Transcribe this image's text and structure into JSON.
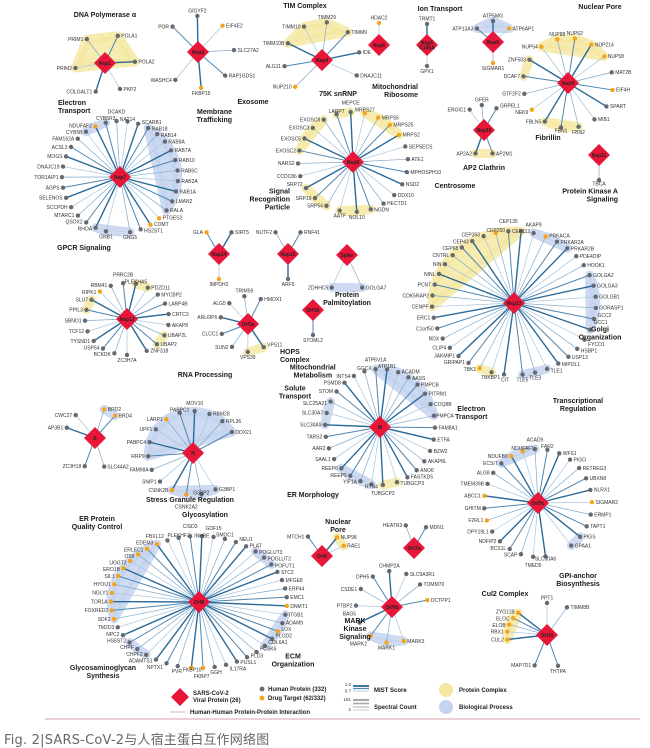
{
  "caption": "Fig. 2|SARS-CoV-2与人宿主蛋白互作网络图",
  "colors": {
    "viral": "#e8173a",
    "human": "#666a70",
    "drug": "#f5a31a",
    "edge_dark": "#2b6a98",
    "edge_light": "#a9c6de",
    "complex": "#f4e7a2",
    "process": "#c4d4ee",
    "rule": "#d9a0ae"
  },
  "viral_proteins": [
    {
      "label": "Nsp1",
      "preys": [
        "COLGALT1",
        "PRIM2",
        "PRIM1",
        "POLA1",
        "POLA2",
        "PKP2"
      ],
      "drug_targets": []
    },
    {
      "label": "Nsp2",
      "preys": [
        "POR",
        "GIGYF2",
        "EIF4E2",
        "SLC27A2",
        "RAP1GDS1",
        "FKBP15",
        "WASHC4"
      ],
      "drug_targets": [
        "EIF4E2",
        "FKBP15"
      ]
    },
    {
      "label": "Nsp4",
      "preys": [
        "NUP210",
        "ALG11",
        "TIMM10B",
        "TIMM10",
        "TIMM29",
        "TIMM9",
        "IDE",
        "DNAJC11"
      ],
      "drug_targets": [
        "NUP210"
      ]
    },
    {
      "label": "Nsp5",
      "preys": [
        "HDAC2"
      ],
      "drug_targets": [
        "HDAC2"
      ]
    },
    {
      "label": "Nsp5 C145A",
      "preys": [
        "TRMT1",
        "GPX1"
      ],
      "drug_targets": []
    },
    {
      "label": "Nsp6",
      "preys": [
        "ATP13A3",
        "ATP5MG",
        "ATP6AP1",
        "SIGMAR1"
      ],
      "drug_targets": [
        "ATP6AP1",
        "SIGMAR1"
      ]
    },
    {
      "label": "Nsp7",
      "preys": [
        "GNG5",
        "HS2ST1",
        "COMT",
        "PTGES2",
        "RALA",
        "LMAN2",
        "RAB1A",
        "RAB2A",
        "RAB5C",
        "RAB10",
        "RAB7A",
        "RAB8A",
        "RAB14",
        "RAB18",
        "SCARB1",
        "NAT14",
        "DCAKD",
        "CYB5R3",
        "NDUFAF2",
        "CYB5B",
        "FAM162A",
        "ACSL3",
        "MOGS",
        "DNAJC19",
        "TOR1AIP1",
        "AGPS",
        "SELENOS",
        "SCCPDH",
        "MTARC1",
        "QSOX2",
        "RHOA",
        "GNB1"
      ],
      "drug_targets": [
        "NDUFAF2",
        "PTGES2",
        "COMT"
      ]
    },
    {
      "label": "Nsp8",
      "preys": [
        "AATF",
        "SRP54",
        "SRP19",
        "SRP72",
        "CCDC86",
        "NARS2",
        "EXOSC2",
        "EXOSC5",
        "EXOSC3",
        "EXOSC8",
        "LARP7",
        "MEPCE",
        "MRPS27",
        "MRPS5",
        "MRPS25",
        "MRPS2",
        "SEPSECS",
        "ATE1",
        "MPHOSPH10",
        "NSD2",
        "DDX10",
        "HECTD1",
        "NGDN",
        "NOL10"
      ],
      "drug_targets": [
        "MRPS27",
        "MRPS5",
        "MRPS25",
        "MRPS2"
      ]
    },
    {
      "label": "Nsp9",
      "preys": [
        "FBLN5",
        "NEK9",
        "GTF2F2",
        "DCAF7",
        "ZNF503",
        "NUP54",
        "NUP88",
        "NUP62",
        "NUP214",
        "NUP58",
        "MAT2B",
        "EIF4H",
        "SPART",
        "MIB1",
        "FBN2",
        "FBN1"
      ],
      "drug_targets": [
        "NUP54",
        "NUP62",
        "NUP214",
        "NUP88",
        "NUP58",
        "NEK9",
        "EIF4H"
      ]
    },
    {
      "label": "Nsp10",
      "preys": [
        "AP2M1",
        "AP2A2",
        "ERGIC1",
        "GFER",
        "GRPEL1"
      ],
      "drug_targets": []
    },
    {
      "label": "Nsp11",
      "preys": [
        "TBCA"
      ],
      "drug_targets": []
    },
    {
      "label": "Nsp12",
      "preys": [
        "ZC3H7A",
        "BCKDK",
        "USP54",
        "TYSND1",
        "TCF12",
        "SBNO1",
        "PPIL3",
        "SLU7",
        "RIPK1",
        "RBM41",
        "PRRC2B",
        "PLEKHA5",
        "PDZD11",
        "MYCBP2",
        "LARP4B",
        "CRTC3",
        "AKAP8",
        "UBAP2L",
        "UBAP2",
        "ZNF318"
      ],
      "drug_targets": [
        "RIPK1"
      ]
    },
    {
      "label": "Nsp13",
      "preys": [
        "CIT",
        "TBKBP1",
        "TBK1",
        "GRIPAP1",
        "JAKMIP1",
        "CLIP4",
        "RDX",
        "C1orf50",
        "ERC1",
        "CENPF",
        "CDK5RAP2",
        "PCNT",
        "NINL",
        "NIN",
        "CNTRL",
        "CEP68",
        "CEP43",
        "CEP350",
        "CEP250",
        "CEP135",
        "CEP112",
        "AKAP9",
        "PRKACA",
        "PRKAR2A",
        "PRKAR2B",
        "PDE4DIP",
        "HOOK1",
        "GOLGA2",
        "GOLGA3",
        "GOLGB1",
        "GORASP1",
        "GCC2",
        "GCC1",
        "FYCO1",
        "HSBP1",
        "USP13",
        "MIPOL1",
        "TLE1",
        "TLE3",
        "TLE5"
      ],
      "drug_targets": [
        "CEP250",
        "PRKACA",
        "TBK1"
      ]
    },
    {
      "label": "Nsp14",
      "preys": [
        "GLA",
        "SIRT5",
        "IMPDH2"
      ],
      "drug_targets": [
        "GLA",
        "IMPDH2"
      ]
    },
    {
      "label": "Nsp15",
      "preys": [
        "NUTF2",
        "RNF41",
        "ARF6"
      ],
      "drug_targets": []
    },
    {
      "label": "Spike",
      "preys": [
        "ZDHHC5",
        "GOLGA7"
      ],
      "drug_targets": []
    },
    {
      "label": "Orf3a",
      "preys": [
        "VPS11",
        "VPS39",
        "SUN2",
        "CLCC1",
        "ARL6IP6",
        "ALG5",
        "TRIM59",
        "HMOX1"
      ],
      "drug_targets": []
    },
    {
      "label": "Orf3b",
      "preys": [
        "STOML2"
      ],
      "drug_targets": []
    },
    {
      "label": "E",
      "preys": [
        "SLC44A2",
        "ZC3H18",
        "AP3B1",
        "CWC27",
        "BRD2",
        "BRD4"
      ],
      "drug_targets": [
        "BRD2",
        "BRD4"
      ]
    },
    {
      "label": "N",
      "preys": [
        "G3BP1",
        "G3BP2",
        "CSNK2A2",
        "CSNK2B",
        "SNIP1",
        "FAM98A",
        "RRP9",
        "PABPC4",
        "UPF1",
        "LARP1",
        "PABPC1",
        "MOV10",
        "RBM28",
        "RPL36",
        "DDX21"
      ],
      "drug_targets": [
        "CSNK2A2",
        "CSNK2B",
        "LARP1"
      ]
    },
    {
      "label": "M",
      "preys": [
        "TUBGCP2",
        "RTN4",
        "YIF1A",
        "REEP5",
        "REEP6",
        "SAAL1",
        "AAR2",
        "TARS2",
        "SLC30A9",
        "SLC30A7",
        "SLC25A21",
        "STOM",
        "PSMD8",
        "INTS4",
        "GGCX",
        "ATP6V1A",
        "ATP1B1",
        "ACADM",
        "AASS",
        "PMPCB",
        "PITRM1",
        "COQ8B",
        "PMPCA",
        "FAM8A1",
        "ETFA",
        "BZW2",
        "AKAP8L",
        "ANO6",
        "FASTKD5",
        "TUBGCP3"
      ],
      "drug_targets": []
    },
    {
      "label": "Orf6",
      "preys": [
        "MTCH1",
        "NUP98",
        "RAE1"
      ],
      "drug_targets": [
        "NUP98",
        "RAE1"
      ]
    },
    {
      "label": "Orf7a",
      "preys": [
        "HEATR3",
        "MDN1"
      ],
      "drug_targets": []
    },
    {
      "label": "Orf9b",
      "preys": [
        "MARK3",
        "MARK1",
        "MARK2",
        "BAG5",
        "PTBP2",
        "CSDE1",
        "DPH5",
        "CHMP2A",
        "SLC9A3R1",
        "TOMM70",
        "DCTPP1"
      ],
      "drug_targets": [
        "MARK1",
        "MARK2",
        "MARK3",
        "DCTPP1"
      ]
    },
    {
      "label": "Orf9c",
      "preys": [
        "SLC30A6",
        "TMED5",
        "SCAP",
        "BCS1L",
        "NDFIP2",
        "DPY19L1",
        "F2RL1",
        "GHITM",
        "ABCC1",
        "TMEM39B",
        "ALG8",
        "ECSIT",
        "NDUFB9",
        "NDUFAF1",
        "ACAD9",
        "FAR2",
        "WFS1",
        "PIGO",
        "RETREG3",
        "UBXN8",
        "NLRX1",
        "SIGMAR2",
        "ERMP1",
        "TAPT1",
        "PIGS",
        "GPAA1"
      ],
      "drug_targets": [
        "NDUFAF1",
        "NDUFB9",
        "ABCC1",
        "F2RL1",
        "SIGMAR2"
      ]
    },
    {
      "label": "Orf10",
      "preys": [
        "MAP7D1",
        "CUL2",
        "RBX1",
        "ELOB",
        "ELOC",
        "ZYG11B",
        "PPT1",
        "TIMM8B",
        "THTPA"
      ],
      "drug_targets": [
        "ELOC",
        "ELOB",
        "RBX1",
        "CUL2",
        "ZYG11B"
      ]
    },
    {
      "label": "Orf8",
      "preys": [
        "PVR",
        "NPTX1",
        "ADAMTS1",
        "CHPF2",
        "CHPF",
        "HS6ST2",
        "NPC2",
        "TM2D3",
        "SDF2",
        "FOXRED2",
        "TOR1A",
        "NGLY1",
        "HYOU1",
        "SIL1",
        "ERO1B",
        "UGGT2",
        "OS9",
        "ERLEC1",
        "EDEM3",
        "FBXL12",
        "PLEKHF2",
        "CISD3",
        "INHBE",
        "GDF15",
        "SMOC1",
        "NEU1",
        "PLAT",
        "POGLUT3",
        "POGLUT2",
        "POFUT1",
        "STC2",
        "MFGE8",
        "ERP44",
        "EMC1",
        "DNMT1",
        "ITGB1",
        "ADAM9",
        "LOX",
        "PLOD2",
        "COL6A1",
        "PCSK6",
        "PLD3",
        "PUSL1",
        "IL17RA",
        "GGH",
        "FKBP7",
        "FKBP10"
      ],
      "drug_targets": [
        "SDF2",
        "FOXRED2",
        "TOR1A",
        "NGLY1",
        "HYOU1",
        "SIL1",
        "ERO1B",
        "UGGT2",
        "OS9",
        "ERLEC1",
        "EDEM3",
        "DNMT1",
        "LOX",
        "FKBP10",
        "FKBP7"
      ]
    }
  ],
  "groups": [
    {
      "label": "DNA Polymerase α",
      "kind": "complex",
      "members": [
        "PRIM1",
        "POLA1",
        "PRIM2",
        "POLA2"
      ]
    },
    {
      "label": "TIM Complex",
      "kind": "complex",
      "members": [
        "TIMM10",
        "TIMM29",
        "TIMM9",
        "TIMM10B"
      ]
    },
    {
      "label": "Ion Transport",
      "kind": "process",
      "members": [
        "ATP5MG",
        "ATP6AP1",
        "ATP13A3"
      ]
    },
    {
      "label": "Nuclear Pore",
      "kind": "complex",
      "members": [
        "NUP54",
        "NUP62",
        "NUP214",
        "NUP88",
        "NUP58"
      ]
    },
    {
      "label": "",
      "kind": "complex",
      "members": [
        "ZNF503",
        "DCAF7"
      ]
    },
    {
      "label": "Fibrillin",
      "kind": "complex",
      "members": [
        "FBLN5",
        "FBN1",
        "FBN2"
      ]
    },
    {
      "label": "Electron\nTransport",
      "kind": "process",
      "members": [
        "NDUFAF2",
        "CYB5B",
        "CYB5R3"
      ]
    },
    {
      "label": "Membrane\nTrafficking",
      "kind": "process",
      "members": [
        "RAB18",
        "RAB14",
        "RAB8A",
        "RAB7A",
        "RAB10",
        "RAB5C",
        "RAB2A",
        "RAB1A",
        "LMAN2",
        "RALA"
      ]
    },
    {
      "label": "GPCR Signaling",
      "kind": "process",
      "members": [
        "RHOA",
        "GNB1",
        "GNG5"
      ]
    },
    {
      "label": "Exosome",
      "kind": "complex",
      "members": [
        "EXOSC8",
        "EXOSC3",
        "EXOSC5",
        "EXOSC2"
      ]
    },
    {
      "label": "75K snRNP",
      "kind": "complex",
      "members": [
        "LARP7",
        "MEPCE"
      ]
    },
    {
      "label": "Mitochondrial\nRibosome",
      "kind": "complex",
      "members": [
        "MRPS27",
        "MRPS5",
        "MRPS25",
        "MRPS2"
      ]
    },
    {
      "label": "Signal\nRecognition\nParticle",
      "kind": "complex",
      "members": [
        "SRP72",
        "SRP19",
        "SRP54"
      ]
    },
    {
      "label": "",
      "kind": "complex",
      "members": [
        "AATF",
        "NGDN",
        "NOL10"
      ]
    },
    {
      "label": "AP2 Clathrin",
      "kind": "complex",
      "members": [
        "AP2A2",
        "AP2M1"
      ]
    },
    {
      "label": "Centrosome",
      "kind": "complex",
      "members": [
        "CNTRL",
        "CEP68",
        "CEP43",
        "CEP350",
        "CEP250",
        "CEP135",
        "CEP112",
        "CENPF",
        "CDK5RAP2",
        "PCNT",
        "NINL",
        "NIN"
      ]
    },
    {
      "label": "Protein Kinase A\nSignaling",
      "kind": "process",
      "members": [
        "AKAP9",
        "PRKACA",
        "PRKAR2A",
        "PRKAR2B"
      ]
    },
    {
      "label": "Golgi\nOrganization",
      "kind": "process",
      "members": [
        "GOLGA2",
        "GOLGA3",
        "GOLGB1",
        "GORASP1",
        "GCC2",
        "GCC1"
      ]
    },
    {
      "label": "Transcriptional\nRegulation",
      "kind": "process",
      "members": [
        "TLE1",
        "TLE3",
        "TLE5"
      ]
    },
    {
      "label": "",
      "kind": "complex",
      "members": [
        "TBK1",
        "TBKBP1"
      ]
    },
    {
      "label": "",
      "kind": "complex",
      "members": [
        "SLU7",
        "PPIL3"
      ]
    },
    {
      "label": "",
      "kind": "complex",
      "members": [
        "PLEKHA5",
        "PDZD11"
      ]
    },
    {
      "label": "",
      "kind": "complex",
      "members": [
        "UBAP2L",
        "UBAP2"
      ]
    },
    {
      "label": "HOPS\nComplex",
      "kind": "complex",
      "members": [
        "VPS11",
        "VPS39"
      ]
    },
    {
      "label": "Protein\nPalmitoylation",
      "kind": "process",
      "members": [
        "ZDHHC5",
        "GOLGA7"
      ]
    },
    {
      "label": "",
      "kind": "process",
      "members": [
        "BRD2",
        "BRD4"
      ]
    },
    {
      "label": "RNA Processing",
      "kind": "process",
      "members": [
        "RRP9",
        "PABPC4",
        "UPF1",
        "LARP1",
        "PABPC1",
        "MOV10",
        "RBM28",
        "RPL36",
        "DDX21"
      ]
    },
    {
      "label": "Stress Granule Regulation",
      "kind": "process",
      "members": [
        "CSNK2B",
        "CSNK2A2",
        "G3BP2",
        "G3BP1"
      ]
    },
    {
      "label": "Mitochondrial\nMetabolism",
      "kind": "process",
      "members": [
        "ATP6V1A",
        "ATP1B1",
        "ACADM",
        "AASS",
        "PMPCB",
        "PITRM1",
        "COQ8B",
        "PMPCA"
      ]
    },
    {
      "label": "Solute\nTransport",
      "kind": "process",
      "members": [
        "SLC25A21",
        "SLC30A7",
        "SLC30A9"
      ]
    },
    {
      "label": "ER Morphology",
      "kind": "process",
      "members": [
        "REEP6",
        "REEP5",
        "YIF1A",
        "RTN4"
      ]
    },
    {
      "label": "",
      "kind": "complex",
      "members": [
        "TUBGCP2",
        "TUBGCP3"
      ]
    },
    {
      "label": "Nuclear\nPore",
      "kind": "complex",
      "members": [
        "NUP98",
        "RAE1"
      ]
    },
    {
      "label": "Electron\nTransport",
      "kind": "process",
      "members": [
        "NDUFAF1",
        "ECSIT",
        "ACAD9",
        "NDUFB9"
      ]
    },
    {
      "label": "GPI-anchor\nBiosynthesis",
      "kind": "process",
      "members": [
        "PIGS",
        "GPAA1"
      ]
    },
    {
      "label": "MARK\nKinase\nSignaling",
      "kind": "process",
      "members": [
        "MARK2",
        "MARK1",
        "MARK3"
      ]
    },
    {
      "label": "Cul2 Complex",
      "kind": "complex",
      "members": [
        "ELOC",
        "ZYG11B",
        "ELOB",
        "RBX1",
        "CUL2"
      ]
    },
    {
      "label": "Glycosylation",
      "kind": "process",
      "members": [
        "POGLUT3",
        "POGLUT2",
        "POFUT1"
      ]
    },
    {
      "label": "ER Protein\nQuality Control",
      "kind": "process",
      "members": [
        "EDEM3",
        "ERLEC1",
        "OS9",
        "UGGT2",
        "ERO1B",
        "SIL1",
        "HYOU1",
        "NGLY1",
        "TOR1A",
        "FOXRED2",
        "SDF2"
      ]
    },
    {
      "label": "ECM\nOrganization",
      "kind": "process",
      "members": [
        "ITGB1",
        "ADAM9",
        "LOX",
        "PLOD2",
        "COL6A1"
      ]
    },
    {
      "label": "Glycosaminoglycan\nSynthesis",
      "kind": "process",
      "members": [
        "HS6ST2",
        "CHPF",
        "CHPF2"
      ]
    }
  ],
  "legend": {
    "viral_protein": "SARS-CoV-2\nViral Protein (26)",
    "human_protein": "Human Protein (332)",
    "drug_target": "Drug Target (62/332)",
    "hh_interaction": "Human-Human Protein-Protein Interaction",
    "mist_score": "MIST Score",
    "mist_high": "1.0",
    "mist_low": "0.7",
    "spectral_count": "Spectral Count",
    "spectral_high": "181",
    "spectral_low": "2",
    "protein_complex": "Protein Complex",
    "biological_process": "Biological Process"
  }
}
